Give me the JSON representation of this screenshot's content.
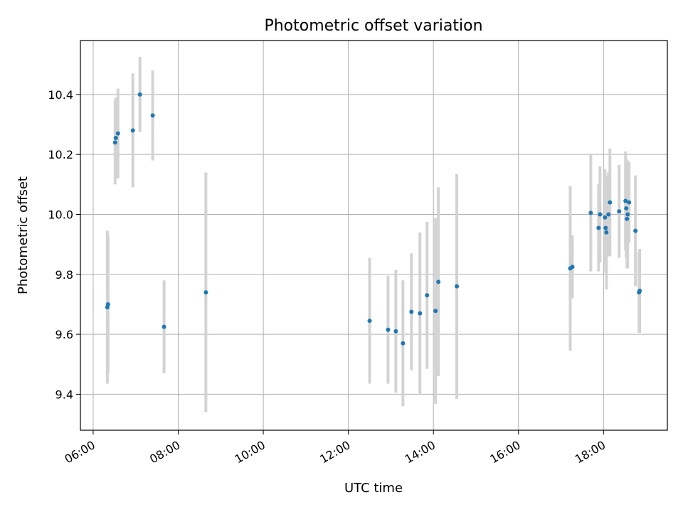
{
  "chart_data": {
    "type": "scatter",
    "title": "Photometric offset variation",
    "xlabel": "UTC time",
    "ylabel": "Photometric offset",
    "xlim": [
      "05:42",
      "19:30"
    ],
    "ylim": [
      9.28,
      10.58
    ],
    "grid": true,
    "x_ticks": [
      "06:00",
      "08:00",
      "10:00",
      "12:00",
      "14:00",
      "16:00",
      "18:00"
    ],
    "y_ticks": [
      "9.4",
      "9.6",
      "9.8",
      "10.0",
      "10.2",
      "10.4"
    ],
    "colors": {
      "point": "#1f77b4",
      "errorbar": "#d3d3d3",
      "grid": "#b0b0b0"
    },
    "points": [
      {
        "x": "06:20",
        "y": 9.69,
        "err": 0.255
      },
      {
        "x": "06:21",
        "y": 9.7,
        "err": 0.23
      },
      {
        "x": "06:31",
        "y": 10.24,
        "err": 0.14
      },
      {
        "x": "06:32",
        "y": 10.255,
        "err": 0.135
      },
      {
        "x": "06:35",
        "y": 10.27,
        "err": 0.15
      },
      {
        "x": "06:56",
        "y": 10.28,
        "err": 0.19
      },
      {
        "x": "07:06",
        "y": 10.4,
        "err": 0.125
      },
      {
        "x": "07:24",
        "y": 10.33,
        "err": 0.15
      },
      {
        "x": "07:40",
        "y": 9.625,
        "err": 0.155
      },
      {
        "x": "08:39",
        "y": 9.74,
        "err": 0.4
      },
      {
        "x": "12:30",
        "y": 9.645,
        "err": 0.21
      },
      {
        "x": "12:56",
        "y": 9.615,
        "err": 0.18
      },
      {
        "x": "13:07",
        "y": 9.61,
        "err": 0.205
      },
      {
        "x": "13:17",
        "y": 9.57,
        "err": 0.21
      },
      {
        "x": "13:29",
        "y": 9.675,
        "err": 0.195
      },
      {
        "x": "13:41",
        "y": 9.67,
        "err": 0.27
      },
      {
        "x": "13:51",
        "y": 9.73,
        "err": 0.245
      },
      {
        "x": "14:03",
        "y": 9.678,
        "err": 0.31
      },
      {
        "x": "14:07",
        "y": 9.775,
        "err": 0.315
      },
      {
        "x": "14:33",
        "y": 9.76,
        "err": 0.375
      },
      {
        "x": "17:13",
        "y": 9.82,
        "err": 0.275
      },
      {
        "x": "17:16",
        "y": 9.825,
        "err": 0.105
      },
      {
        "x": "17:42",
        "y": 10.005,
        "err": 0.195
      },
      {
        "x": "17:53",
        "y": 9.955,
        "err": 0.145
      },
      {
        "x": "17:55",
        "y": 10.0,
        "err": 0.16
      },
      {
        "x": "18:02",
        "y": 9.99,
        "err": 0.16
      },
      {
        "x": "18:03",
        "y": 9.955,
        "err": 0.15
      },
      {
        "x": "18:04",
        "y": 9.94,
        "err": 0.19
      },
      {
        "x": "18:07",
        "y": 10.0,
        "err": 0.14
      },
      {
        "x": "18:09",
        "y": 10.04,
        "err": 0.18
      },
      {
        "x": "18:22",
        "y": 10.01,
        "err": 0.155
      },
      {
        "x": "18:31",
        "y": 10.045,
        "err": 0.165
      },
      {
        "x": "18:32",
        "y": 10.02,
        "err": 0.165
      },
      {
        "x": "18:33",
        "y": 9.985,
        "err": 0.165
      },
      {
        "x": "18:34",
        "y": 10.0,
        "err": 0.18
      },
      {
        "x": "18:36",
        "y": 10.04,
        "err": 0.135
      },
      {
        "x": "18:45",
        "y": 9.945,
        "err": 0.185
      },
      {
        "x": "18:50",
        "y": 9.74,
        "err": 0.135
      },
      {
        "x": "18:51",
        "y": 9.745,
        "err": 0.14
      }
    ]
  }
}
